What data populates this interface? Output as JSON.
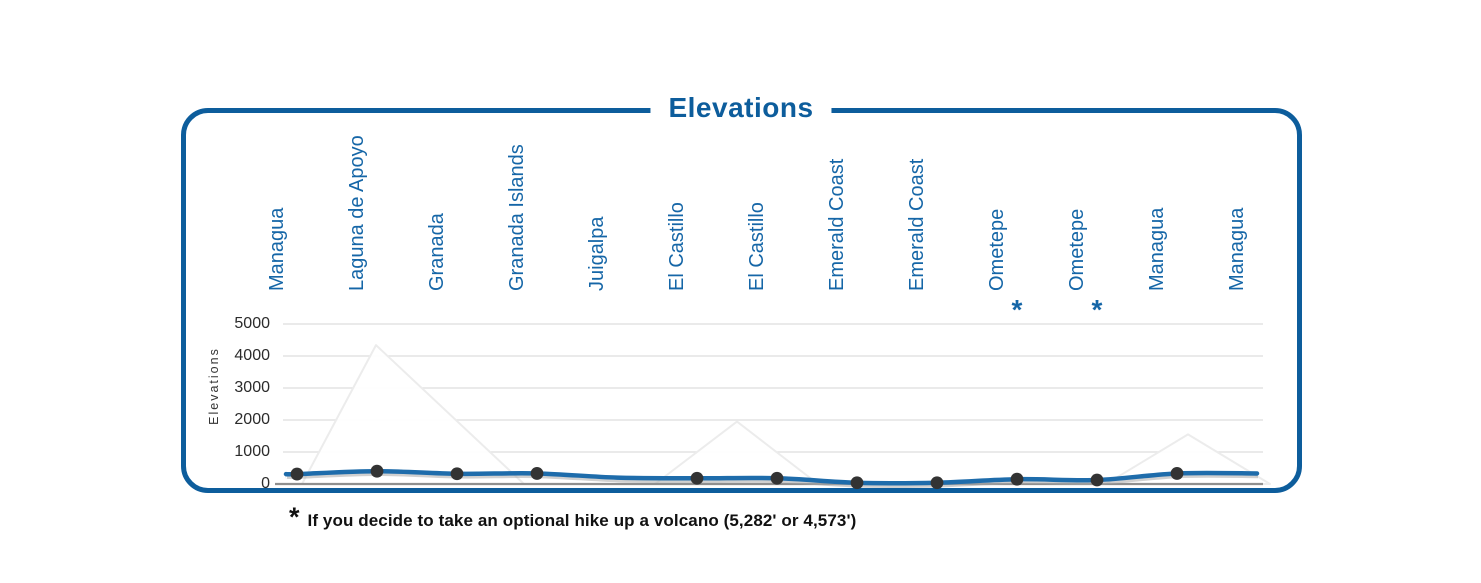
{
  "title": "Elevations",
  "colors": {
    "brand_blue": "#0d5d9c",
    "label_blue": "#1566a7",
    "line_blue": "#1e6cab",
    "dot": "#333333",
    "gridline": "#e3e3e3",
    "zero_axis": "#8f8f8f",
    "tick_text": "#2b2b2b",
    "footnote_text": "#111111"
  },
  "y_axis": {
    "label": "Elevations",
    "ticks": [
      "5000",
      "4000",
      "3000",
      "2000",
      "1000",
      "0"
    ]
  },
  "footnote": {
    "marker": "*",
    "text": "If you decide to take an optional hike up a volcano (5,282' or 4,573')"
  },
  "chart_data": {
    "type": "line",
    "title": "Elevations",
    "ylabel": "Elevations",
    "ylim": [
      0,
      5000
    ],
    "yticks": [
      0,
      1000,
      2000,
      3000,
      4000,
      5000
    ],
    "grid": true,
    "legend": "none",
    "categories": [
      "Managua",
      "Laguna de Apoyo",
      "Granada",
      "Granada Islands",
      "Juigalpa",
      "El Castillo",
      "El Castillo",
      "Emerald Coast",
      "Emerald Coast",
      "Ometepe",
      "Ometepe",
      "Managua",
      "Managua"
    ],
    "values": [
      310,
      400,
      320,
      330,
      200,
      180,
      180,
      40,
      40,
      150,
      125,
      330,
      330
    ],
    "markers": [
      true,
      true,
      true,
      true,
      false,
      true,
      true,
      true,
      true,
      true,
      true,
      true,
      false
    ],
    "asterisk_indices": [
      9,
      10
    ],
    "annotation": "* If you decide to take an optional hike up a volcano (5,282' or 4,573')"
  }
}
